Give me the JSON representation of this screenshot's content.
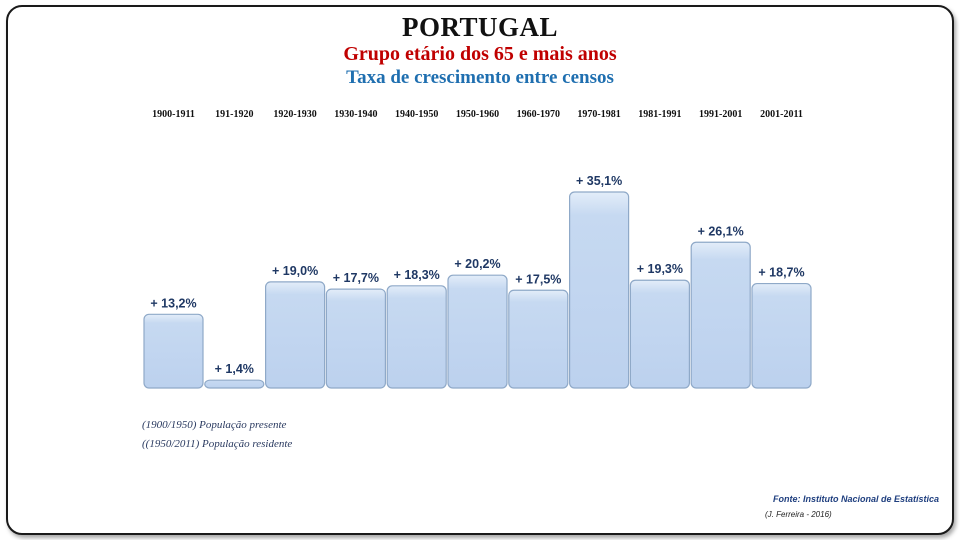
{
  "header": {
    "title": "PORTUGAL",
    "subtitle": "Grupo etário dos 65 e mais anos",
    "subtitle2": "Taxa de crescimento entre censos"
  },
  "notes": {
    "line1": "(1900/1950) População presente",
    "line2": "((1950/2011) População residente"
  },
  "footer": {
    "source": "Fonte: Instituto Nacional de Estatística",
    "author": "(J. Ferreira - 2016)"
  },
  "colors": {
    "bar_fill": "#c6d9f1",
    "bar_stroke": "#8fa9c8",
    "value_label": "#1f3864",
    "title_red": "#c00000",
    "title_blue": "#1f6fb0"
  },
  "chart_data": {
    "type": "bar",
    "title": "PORTUGAL",
    "subtitle": "Grupo etário dos 65 e mais anos — Taxa de crescimento entre censos",
    "categories": [
      "1900-1911",
      "191-1920",
      "1920-1930",
      "1930-1940",
      "1940-1950",
      "1950-1960",
      "1960-1970",
      "1970-1981",
      "1981-1991",
      "1991-2001",
      "2001-2011"
    ],
    "values": [
      13.2,
      1.4,
      19.0,
      17.7,
      18.3,
      20.2,
      17.5,
      35.1,
      19.3,
      26.1,
      18.7
    ],
    "data_labels": [
      "+ 13,2%",
      "+ 1,4%",
      "+ 19,0%",
      "+ 17,7%",
      "+ 18,3%",
      "+ 20,2%",
      "+ 17,5%",
      "+ 35,1%",
      "+ 19,3%",
      "+ 26,1%",
      "+ 18,7%"
    ],
    "xlabel": "",
    "ylabel": "",
    "ylim": [
      0,
      35.1
    ],
    "category_labels_position": "top",
    "grid": false,
    "legend": false
  }
}
